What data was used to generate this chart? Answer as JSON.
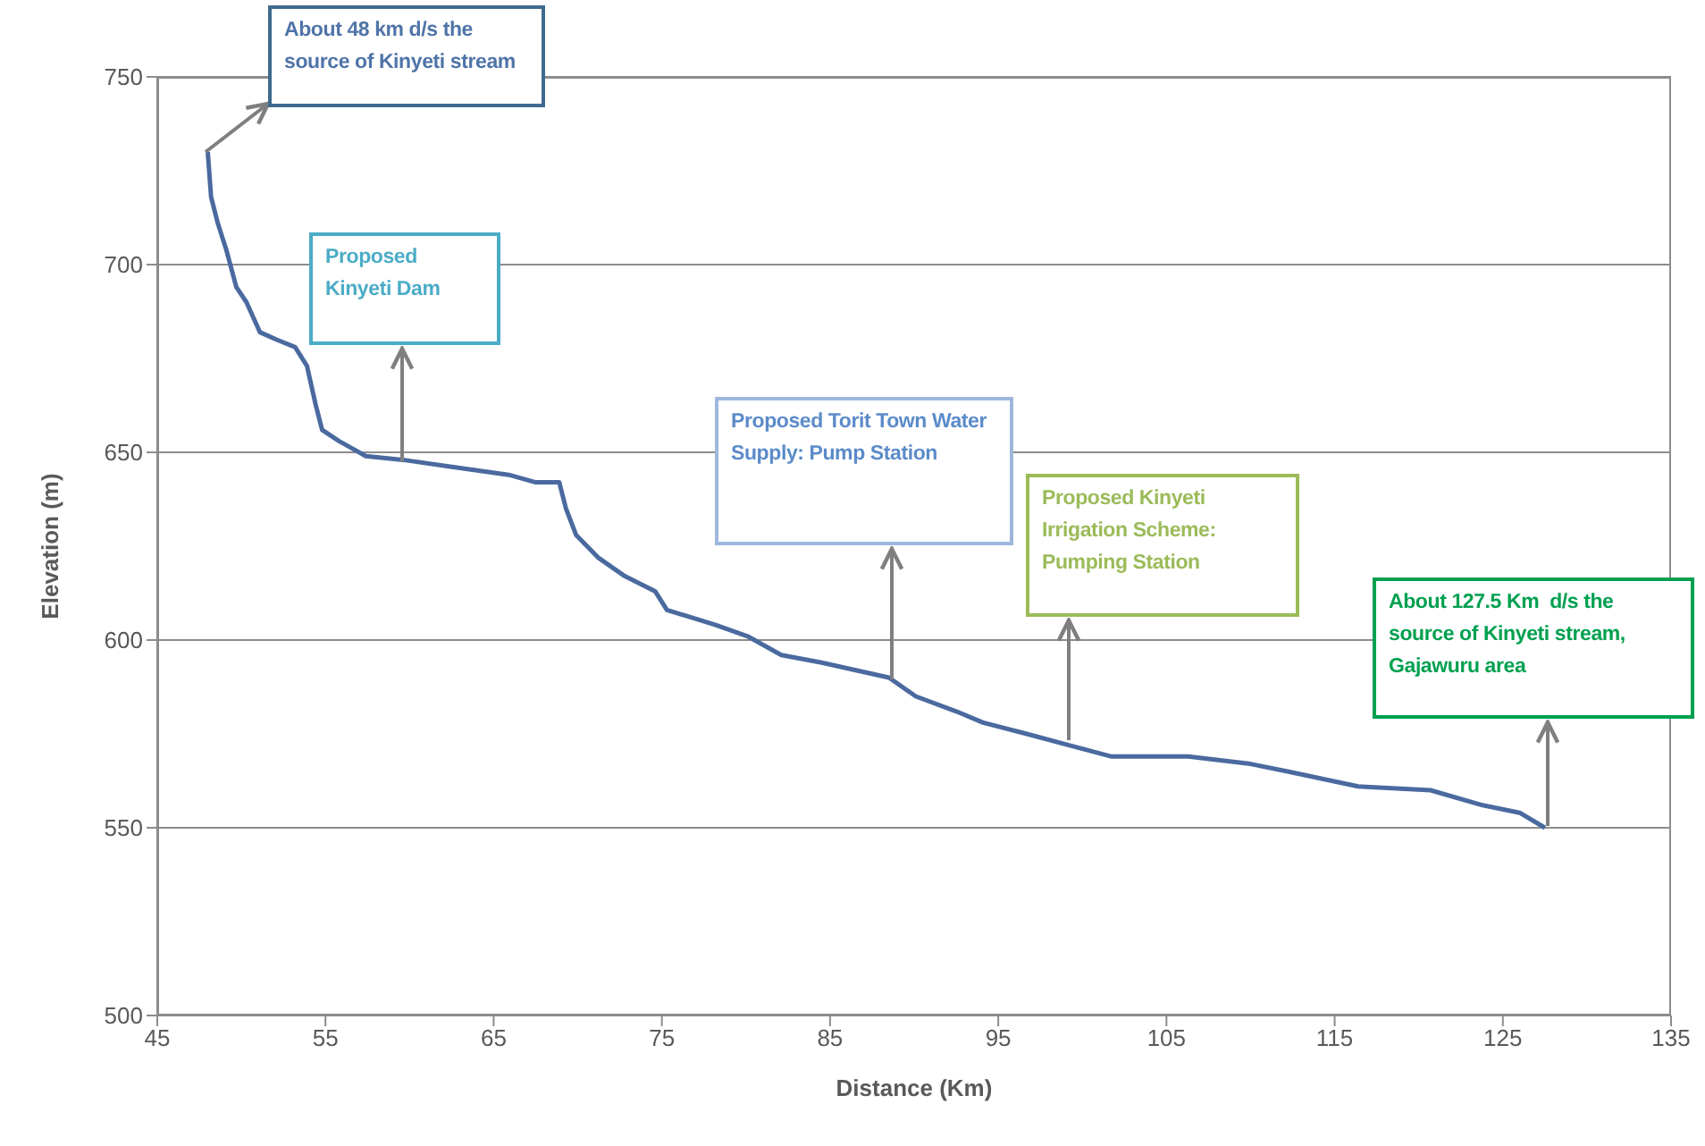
{
  "chart_data": {
    "type": "line",
    "xlabel": "Distance (Km)",
    "ylabel": "Elevation (m)",
    "x": [
      48,
      48.2,
      48.6,
      49.1,
      49.7,
      50.3,
      51.1,
      52.1,
      53.2,
      53.9,
      54.4,
      54.8,
      55.8,
      57.4,
      59.6,
      62.7,
      65.9,
      67.5,
      68.9,
      69.3,
      69.9,
      71.2,
      72.8,
      74.6,
      75.3,
      78.2,
      80.1,
      82.1,
      84.5,
      88.5,
      90.1,
      92.5,
      94.1,
      96.7,
      99.2,
      101.7,
      106.3,
      110,
      112.2,
      116.4,
      120.7,
      123.8,
      126,
      127.5
    ],
    "series": [
      {
        "color": "#4a6a9f",
        "values": [
          730,
          718,
          711,
          704,
          694,
          690,
          682,
          680,
          678,
          673,
          663,
          656,
          653,
          649,
          648,
          646,
          644,
          642,
          642,
          635,
          628,
          622,
          617,
          613,
          608,
          604,
          601,
          596,
          594,
          590,
          585,
          581,
          578,
          575,
          572,
          569,
          569,
          567,
          565,
          561,
          560,
          556,
          554,
          550
        ]
      }
    ],
    "xlim": [
      45,
      135
    ],
    "xticks": [
      45,
      55,
      65,
      75,
      85,
      95,
      105,
      115,
      125,
      135
    ],
    "ylim": [
      500,
      750
    ],
    "yticks": [
      500,
      550,
      600,
      650,
      700,
      750
    ],
    "grid": "y",
    "marker": "none",
    "line_style": "solid",
    "annotations": [
      "About 48 km d/s the source of Kinyeti stream",
      "Proposed Kinyeti Dam",
      "Proposed Torit Town Water Supply: Pump Station",
      "Proposed Kinyeti Irrigation Scheme: Pumping Station",
      "About 127.5 Km  d/s the source of Kinyeti stream,  Gajawuru area"
    ]
  }
}
